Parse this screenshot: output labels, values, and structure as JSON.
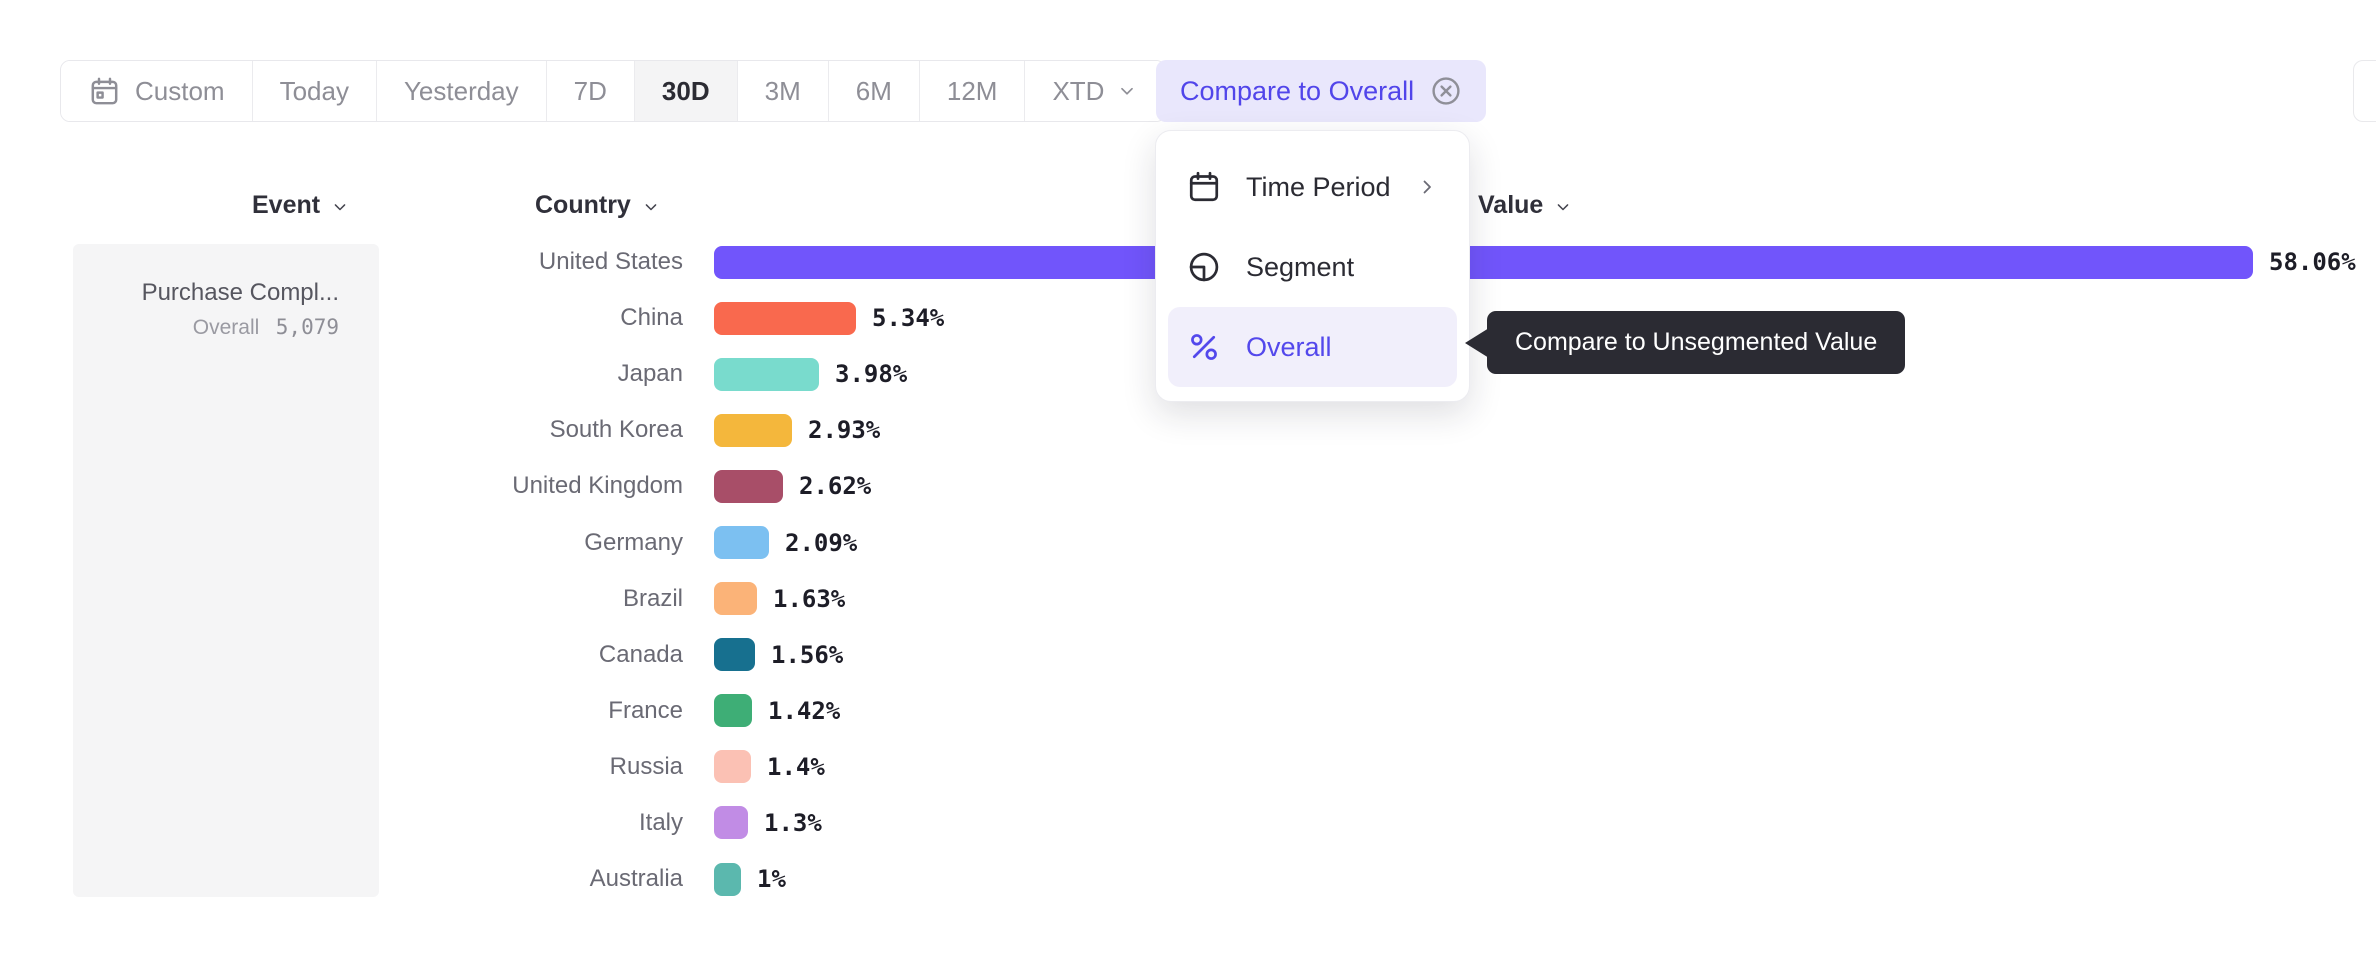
{
  "toolbar": {
    "ranges": [
      {
        "label": "Custom",
        "icon": "calendar",
        "selected": false
      },
      {
        "label": "Today",
        "selected": false
      },
      {
        "label": "Yesterday",
        "selected": false
      },
      {
        "label": "7D",
        "selected": false
      },
      {
        "label": "30D",
        "selected": true
      },
      {
        "label": "3M",
        "selected": false
      },
      {
        "label": "6M",
        "selected": false
      },
      {
        "label": "12M",
        "selected": false
      },
      {
        "label": "XTD",
        "chevron": "down",
        "selected": false
      }
    ],
    "compare_button_label": "Compare to Overall",
    "compare_close_icon": "close-circle-icon"
  },
  "dropdown": {
    "items": [
      {
        "label": "Time Period",
        "icon": "calendar-plain",
        "chevron": "right",
        "active": false
      },
      {
        "label": "Segment",
        "icon": "segment",
        "active": false
      },
      {
        "label": "Overall",
        "icon": "percent",
        "active": true
      }
    ]
  },
  "tooltip": {
    "text": "Compare to Unsegmented Value"
  },
  "table": {
    "event_header": "Event",
    "country_header": "Country",
    "value_header": "Value",
    "event": {
      "name": "Purchase Compl...",
      "overall_label": "Overall",
      "overall_value": "5,079"
    }
  },
  "chart_data": {
    "type": "bar",
    "orientation": "horizontal",
    "unit": "%",
    "axis_labels_visible": false,
    "categories": [
      "United States",
      "China",
      "Japan",
      "South Korea",
      "United Kingdom",
      "Germany",
      "Brazil",
      "Canada",
      "France",
      "Russia",
      "Italy",
      "Australia"
    ],
    "values": [
      58.06,
      5.34,
      3.98,
      2.93,
      2.62,
      2.09,
      1.63,
      1.56,
      1.42,
      1.4,
      1.3,
      1
    ],
    "value_labels": [
      "58.06%",
      "5.34%",
      "3.98%",
      "2.93%",
      "2.62%",
      "2.09%",
      "1.63%",
      "1.56%",
      "1.42%",
      "1.4%",
      "1.3%",
      "1%"
    ],
    "colors": [
      "#7155FB",
      "#F9694E",
      "#79DBCD",
      "#F4B73C",
      "#A84E68",
      "#7CC0F1",
      "#FBB378",
      "#17708F",
      "#3EAE76",
      "#FBC1B4",
      "#C18CE5",
      "#5BB8AE"
    ],
    "xlim": [
      0,
      60
    ],
    "grid": false,
    "legend": false
  },
  "colors": {
    "accent": "#5145EA",
    "accent_bg": "#E9E7FC",
    "selected_range_bg": "#F4F4F5",
    "tooltip_bg": "#2B2B33",
    "card_bg": "#F5F5F6"
  }
}
